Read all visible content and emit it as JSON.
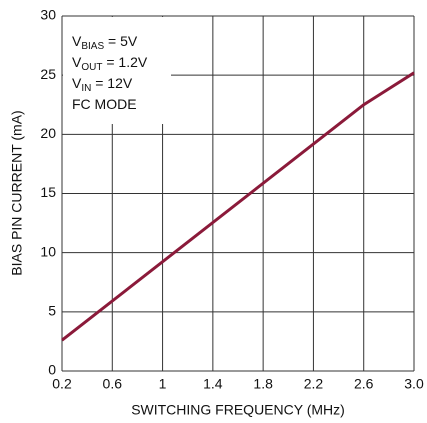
{
  "chart_data": {
    "type": "line",
    "xlabel": "SWITCHING FREQUENCY (MHz)",
    "ylabel": "BIAS PIN CURRENT (mA)",
    "annotations": [
      [
        "V",
        "BIAS",
        " = 5V"
      ],
      [
        "V",
        "OUT",
        " = 1.2V"
      ],
      [
        "V",
        "IN",
        " = 12V"
      ],
      [
        "FC MODE"
      ]
    ],
    "x": [
      0.2,
      2.6,
      3.0
    ],
    "series": [
      {
        "color": "#8b1a3a",
        "values": [
          2.6,
          22.5,
          25.2
        ]
      }
    ],
    "xlim": [
      0.2,
      3.0
    ],
    "xticks": [
      0.2,
      0.6,
      1,
      1.4,
      1.8,
      2.2,
      2.6,
      {
        "value": 3,
        "label": "3.0"
      }
    ],
    "ylim": [
      0,
      30
    ],
    "yticks": [
      0,
      5,
      10,
      15,
      20,
      25,
      30
    ],
    "grid": true
  }
}
